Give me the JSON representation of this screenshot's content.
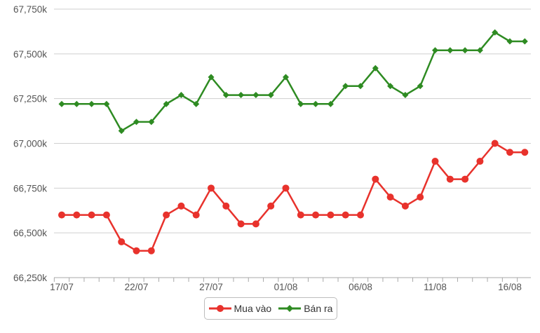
{
  "chart_data": {
    "type": "line",
    "categories": [
      "17/07",
      "18/07",
      "19/07",
      "20/07",
      "21/07",
      "22/07",
      "23/07",
      "24/07",
      "25/07",
      "26/07",
      "27/07",
      "28/07",
      "29/07",
      "30/07",
      "31/07",
      "01/08",
      "02/08",
      "03/08",
      "04/08",
      "05/08",
      "06/08",
      "07/08",
      "08/08",
      "09/08",
      "10/08",
      "11/08",
      "12/08",
      "13/08",
      "14/08",
      "15/08",
      "16/08",
      "17/08"
    ],
    "x_tick_labels": [
      "17/07",
      "22/07",
      "27/07",
      "01/08",
      "06/08",
      "11/08",
      "16/08"
    ],
    "y_tick_labels": [
      "66,250k",
      "66,500k",
      "66,750k",
      "67,000k",
      "67,250k",
      "67,500k",
      "67,750k"
    ],
    "ylim": [
      66250,
      67750
    ],
    "y_ticks": [
      66250,
      66500,
      66750,
      67000,
      67250,
      67500,
      67750
    ],
    "grid": "horizontal",
    "legend_position": "bottom-center",
    "series": [
      {
        "name": "Mua vào",
        "color": "#e8322c",
        "marker": "circle",
        "values": [
          66600,
          66600,
          66600,
          66600,
          66450,
          66400,
          66400,
          66600,
          66650,
          66600,
          66750,
          66650,
          66550,
          66550,
          66650,
          66750,
          66600,
          66600,
          66600,
          66600,
          66600,
          66800,
          66700,
          66650,
          66700,
          66900,
          66800,
          66800,
          66900,
          67000,
          66950,
          66950
        ]
      },
      {
        "name": "Bán ra",
        "color": "#2e8b22",
        "marker": "diamond",
        "values": [
          67220,
          67220,
          67220,
          67220,
          67070,
          67120,
          67120,
          67220,
          67270,
          67220,
          67370,
          67270,
          67270,
          67270,
          67270,
          67370,
          67220,
          67220,
          67220,
          67320,
          67320,
          67420,
          67320,
          67270,
          67320,
          67520,
          67520,
          67520,
          67520,
          67620,
          67570,
          67570
        ]
      }
    ]
  }
}
